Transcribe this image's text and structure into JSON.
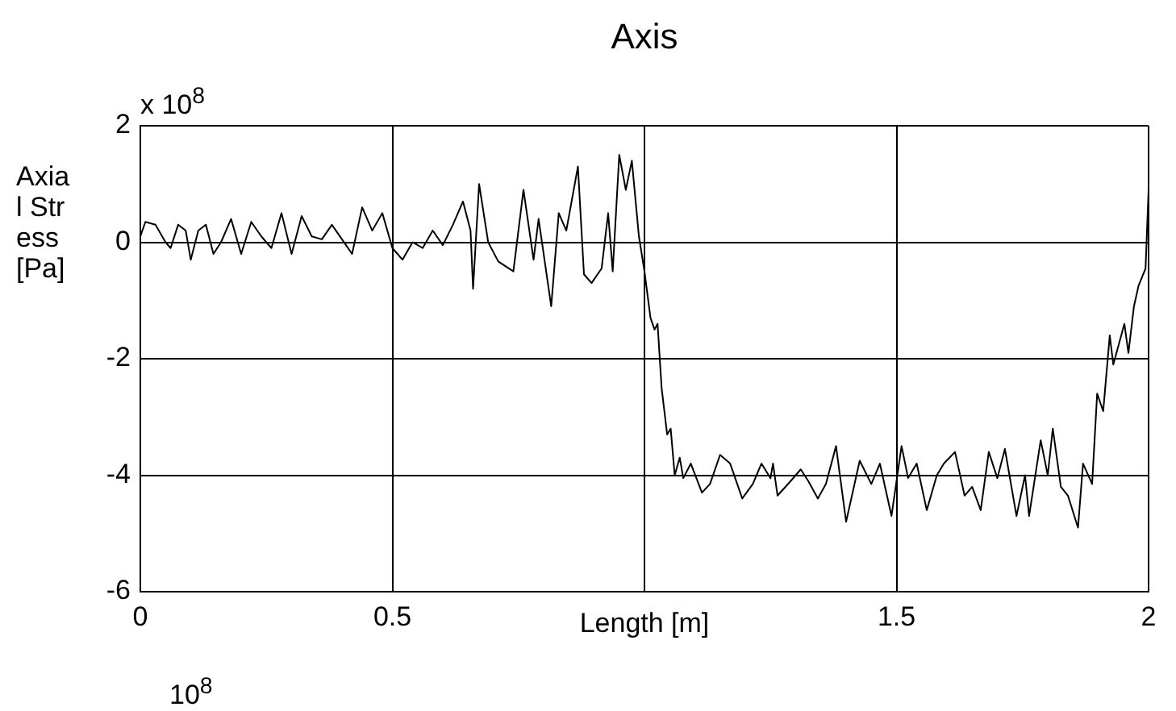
{
  "chart_data": {
    "type": "line",
    "title": "Axis",
    "xlabel": "Length [m]",
    "ylabel": "Axial Stress [Pa]",
    "annotations": [
      "x 10$^{8}$",
      "10$^{8}$"
    ],
    "xlim": [
      0,
      2
    ],
    "xticks": [
      0,
      0.5,
      {
        "value": 1,
        "label": null
      },
      1.5,
      2
    ],
    "ylim": [
      -6,
      2
    ],
    "yticks": [
      -6,
      -4,
      -2,
      0,
      2
    ],
    "grid": true,
    "legend": false,
    "marker": "none",
    "line_style": "solid",
    "series": [
      {
        "color": "#000000",
        "x": [
          0,
          0.01,
          0.03,
          0.05,
          0.06,
          0.075,
          0.09,
          0.1,
          0.115,
          0.13,
          0.145,
          0.16,
          0.18,
          0.2,
          0.22,
          0.24,
          0.26,
          0.28,
          0.3,
          0.32,
          0.34,
          0.36,
          0.38,
          0.4,
          0.42,
          0.44,
          0.46,
          0.48,
          0.5,
          0.52,
          0.54,
          0.56,
          0.58,
          0.6,
          0.62,
          0.64,
          0.655,
          0.66,
          0.672,
          0.69,
          0.71,
          0.74,
          0.76,
          0.78,
          0.79,
          0.815,
          0.83,
          0.845,
          0.868,
          0.88,
          0.895,
          0.915,
          0.928,
          0.937,
          0.95,
          0.963,
          0.975,
          0.989,
          1.0,
          1.012,
          1.02,
          1.026,
          1.034,
          1.045,
          1.052,
          1.06,
          1.07,
          1.077,
          1.092,
          1.114,
          1.13,
          1.15,
          1.17,
          1.194,
          1.215,
          1.232,
          1.25,
          1.255,
          1.264,
          1.29,
          1.31,
          1.325,
          1.344,
          1.36,
          1.38,
          1.4,
          1.427,
          1.45,
          1.467,
          1.49,
          1.51,
          1.523,
          1.54,
          1.56,
          1.58,
          1.594,
          1.616,
          1.635,
          1.65,
          1.667,
          1.683,
          1.7,
          1.715,
          1.738,
          1.755,
          1.763,
          1.786,
          1.8,
          1.81,
          1.826,
          1.84,
          1.86,
          1.87,
          1.888,
          1.898,
          1.91,
          1.923,
          1.93,
          1.952,
          1.96,
          1.971,
          1.98,
          1.994,
          2
        ],
        "values": [
          0.1,
          0.35,
          0.3,
          0,
          -0.1,
          0.3,
          0.2,
          -0.3,
          0.2,
          0.3,
          -0.2,
          0,
          0.4,
          -0.2,
          0.35,
          0.1,
          -0.1,
          0.5,
          -0.2,
          0.45,
          0.1,
          0.05,
          0.3,
          0.05,
          -0.2,
          0.6,
          0.2,
          0.5,
          -0.1,
          -0.3,
          0,
          -0.1,
          0.2,
          -0.05,
          0.3,
          0.7,
          0.2,
          -0.8,
          1,
          0,
          -0.33,
          -0.5,
          0.9,
          -0.3,
          0.4,
          -1.1,
          0.5,
          0.2,
          1.3,
          -0.55,
          -0.7,
          -0.45,
          0.5,
          -0.5,
          1.5,
          0.9,
          1.4,
          0.1,
          -0.5,
          -1.3,
          -1.5,
          -1.4,
          -2.5,
          -3.3,
          -3.2,
          -4,
          -3.7,
          -4.05,
          -3.8,
          -4.3,
          -4.15,
          -3.65,
          -3.8,
          -4.4,
          -4.15,
          -3.8,
          -4.05,
          -3.8,
          -4.35,
          -4.1,
          -3.9,
          -4.1,
          -4.4,
          -4.15,
          -3.5,
          -4.8,
          -3.75,
          -4.15,
          -3.8,
          -4.7,
          -3.5,
          -4.05,
          -3.8,
          -4.6,
          -4,
          -3.8,
          -3.6,
          -4.35,
          -4.2,
          -4.6,
          -3.6,
          -4.05,
          -3.55,
          -4.7,
          -4,
          -4.7,
          -3.4,
          -4,
          -3.2,
          -4.2,
          -4.35,
          -4.9,
          -3.8,
          -4.15,
          -2.6,
          -2.9,
          -1.6,
          -2.1,
          -1.4,
          -1.9,
          -1.1,
          -0.75,
          -0.45,
          0.9
        ]
      }
    ]
  }
}
